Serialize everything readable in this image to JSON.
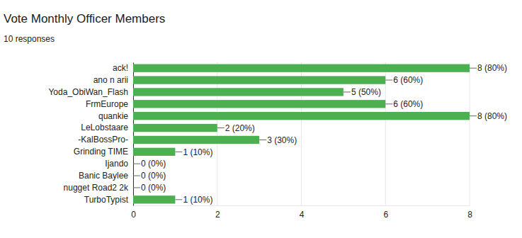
{
  "chart_data": {
    "type": "bar",
    "orientation": "horizontal",
    "title": "Vote Monthly Officer Members",
    "subtitle": "10 responses",
    "categories": [
      "ack!",
      "ano n arii",
      "Yoda_ObiWan_Flash",
      "FrmEurope",
      "quankie",
      "LeLobstaare",
      "-KalBossPro-",
      "Grinding TIME",
      "Ijando",
      "Banic Baylee",
      "nugget Road2 2k",
      "TurboTypist"
    ],
    "values": [
      8,
      6,
      5,
      6,
      8,
      2,
      3,
      1,
      0,
      0,
      0,
      1
    ],
    "value_labels": [
      "8 (80%)",
      "6 (60%)",
      "5 (50%)",
      "6 (60%)",
      "8 (80%)",
      "2 (20%)",
      "3 (30%)",
      "1 (10%)",
      "0 (0%)",
      "0 (0%)",
      "0 (0%)",
      "1 (10%)"
    ],
    "data_labels": true,
    "color": "#4caf50",
    "xlim": [
      0,
      8
    ],
    "xticks": [
      0,
      2,
      4,
      6,
      8
    ],
    "grid": true
  }
}
